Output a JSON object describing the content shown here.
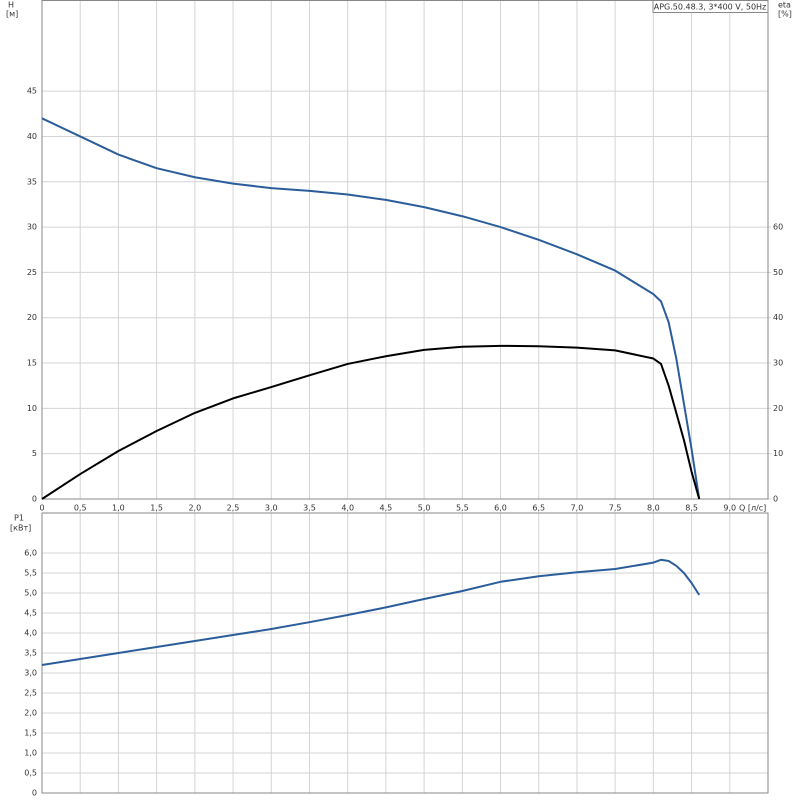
{
  "chart_data": [
    {
      "type": "line",
      "title": "APG.50.48.3, 3*400 V, 50Hz",
      "y_label": "H",
      "y_unit": "[м]",
      "y2_label": "eta",
      "y2_unit": "[%]",
      "x_label": "Q [л/с]",
      "x": [
        0,
        0.5,
        1,
        1.5,
        2,
        2.5,
        3,
        3.5,
        4,
        4.5,
        5,
        5.5,
        6,
        6.5,
        7,
        7.5,
        8,
        8.1,
        8.2,
        8.3,
        8.4,
        8.5,
        8.6
      ],
      "series": [
        {
          "name": "H",
          "color": "#2c5d9b",
          "values": [
            42,
            40,
            38,
            36.5,
            35.5,
            34.8,
            34.3,
            34,
            33.6,
            33,
            32.2,
            31.2,
            30,
            28.6,
            27,
            25.2,
            22.6,
            21.8,
            19.5,
            15.5,
            10.5,
            5.5,
            0
          ]
        },
        {
          "name": "eta",
          "color": "#000000",
          "axis": "y2",
          "values": [
            0,
            5.5,
            10.6,
            15,
            19,
            22.2,
            24.7,
            27.3,
            29.8,
            31.5,
            32.9,
            33.6,
            33.8,
            33.7,
            33.4,
            32.8,
            31,
            29.8,
            25,
            19,
            13,
            6,
            0
          ]
        }
      ],
      "xlim": [
        0,
        9.5
      ],
      "xticks": [
        0,
        {
          "value": 0.5,
          "label": "0,5"
        },
        {
          "value": 1,
          "label": "1,0"
        },
        {
          "value": 1.5,
          "label": "1,5"
        },
        {
          "value": 2,
          "label": "2,0"
        },
        {
          "value": 2.5,
          "label": "2,5"
        },
        {
          "value": 3,
          "label": "3,0"
        },
        {
          "value": 3.5,
          "label": "3,5"
        },
        {
          "value": 4,
          "label": "4,0"
        },
        {
          "value": 4.5,
          "label": "4,5"
        },
        {
          "value": 5,
          "label": "5,0"
        },
        {
          "value": 5.5,
          "label": "5,5"
        },
        {
          "value": 6,
          "label": "6,0"
        },
        {
          "value": 6.5,
          "label": "6,5"
        },
        {
          "value": 7,
          "label": "7,0"
        },
        {
          "value": 7.5,
          "label": "7,5"
        },
        {
          "value": 8,
          "label": "8,0"
        },
        {
          "value": 8.5,
          "label": "8,5"
        },
        {
          "value": 9,
          "label": "9,0"
        }
      ],
      "ylim": [
        0,
        55
      ],
      "yticks": [
        0,
        5,
        10,
        15,
        20,
        25,
        30,
        35,
        40,
        45
      ],
      "y2lim": [
        0,
        110
      ],
      "y2ticks": [
        0,
        10,
        20,
        30,
        40,
        50,
        60
      ],
      "grid": true
    },
    {
      "type": "line",
      "y_label": "P1",
      "y_unit": "[кВт]",
      "x": [
        0,
        0.5,
        1,
        1.5,
        2,
        2.5,
        3,
        3.5,
        4,
        4.5,
        5,
        5.5,
        6,
        6.5,
        7,
        7.5,
        8,
        8.1,
        8.2,
        8.3,
        8.4,
        8.5,
        8.6
      ],
      "series": [
        {
          "name": "P1",
          "color": "#2c5d9b",
          "values": [
            3.2,
            3.35,
            3.5,
            3.65,
            3.8,
            3.95,
            4.1,
            4.27,
            4.45,
            4.64,
            4.85,
            5.05,
            5.28,
            5.42,
            5.52,
            5.6,
            5.76,
            5.83,
            5.8,
            5.68,
            5.5,
            5.25,
            4.95
          ]
        }
      ],
      "xlim": [
        0,
        9.5
      ],
      "ylim": [
        0,
        7
      ],
      "yticks": [
        0,
        {
          "value": 0.5,
          "label": "0,5"
        },
        {
          "value": 1,
          "label": "1,0"
        },
        {
          "value": 1.5,
          "label": "1,5"
        },
        {
          "value": 2,
          "label": "2,0"
        },
        {
          "value": 2.5,
          "label": "2,5"
        },
        {
          "value": 3,
          "label": "3,0"
        },
        {
          "value": 3.5,
          "label": "3,5"
        },
        {
          "value": 4,
          "label": "4,0"
        },
        {
          "value": 4.5,
          "label": "4,5"
        },
        {
          "value": 5,
          "label": "5,0"
        },
        {
          "value": 5.5,
          "label": "5,5"
        },
        {
          "value": 6,
          "label": "6,0"
        }
      ],
      "grid": true
    }
  ]
}
